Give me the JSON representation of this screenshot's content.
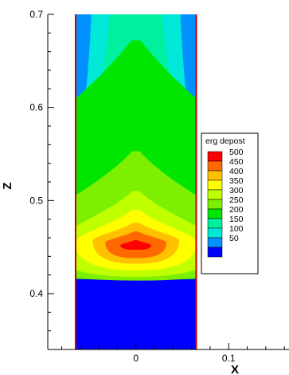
{
  "chart_data": {
    "type": "heatmap",
    "subtype": "filled-contour",
    "title": "",
    "xlabel": "X",
    "ylabel": "Z",
    "xlim": [
      -0.095,
      0.165
    ],
    "ylim": [
      0.34,
      0.7
    ],
    "x_ticks": [
      {
        "value": 0,
        "label": "0"
      },
      {
        "value": 0.1,
        "label": "0.1"
      }
    ],
    "y_ticks": [
      {
        "value": 0.4,
        "label": "0.4"
      },
      {
        "value": 0.5,
        "label": "0.5"
      },
      {
        "value": 0.6,
        "label": "0.6"
      },
      {
        "value": 0.7,
        "label": "0.7"
      }
    ],
    "domain": {
      "x_min": -0.065,
      "x_max": 0.065,
      "z_min": 0.34,
      "z_max": 0.7
    },
    "legend": {
      "title": "erg depost",
      "placement": "right",
      "levels": [
        {
          "value": 500,
          "label": "500",
          "color": "#ff0000"
        },
        {
          "value": 450,
          "label": "450",
          "color": "#ff6a00"
        },
        {
          "value": 400,
          "label": "400",
          "color": "#ffc000"
        },
        {
          "value": 350,
          "label": "350",
          "color": "#ffff00"
        },
        {
          "value": 300,
          "label": "300",
          "color": "#c0ff00"
        },
        {
          "value": 250,
          "label": "250",
          "color": "#7cf000"
        },
        {
          "value": 200,
          "label": "200",
          "color": "#00e600"
        },
        {
          "value": 150,
          "label": "150",
          "color": "#00f0a0"
        },
        {
          "value": 100,
          "label": "100",
          "color": "#00e8d8"
        },
        {
          "value": 50,
          "label": "50",
          "color": "#0090ff"
        },
        {
          "value": 0,
          "label": "",
          "color": "#0000ff"
        }
      ]
    },
    "contours": [
      {
        "level": 50,
        "color": "#0090ff",
        "z_bottom": 0.44,
        "z_top": 0.7,
        "shoulder_z": 0.445,
        "top_half_width": 0.065
      },
      {
        "level": 100,
        "color": "#00e8d8",
        "z_bottom": 0.426,
        "z_top": 0.7,
        "shoulder_z": 0.44,
        "top_half_width": 0.048
      },
      {
        "level": 150,
        "color": "#00f0a0",
        "z_bottom": 0.418,
        "z_top": 0.7,
        "shoulder_z": 0.44,
        "top_half_width": 0.028
      },
      {
        "level": 200,
        "color": "#00e600",
        "z_bottom": 0.415,
        "z_top": 0.672,
        "shoulder_z": 0.445,
        "top_half_width": 0.005
      },
      {
        "level": 250,
        "color": "#7cf000",
        "z_bottom": 0.414,
        "z_top": 0.553,
        "shoulder_z": 0.45,
        "top_half_width": 0.004
      },
      {
        "level": 300,
        "color": "#c0ff00",
        "z_bottom": 0.418,
        "z_top": 0.51,
        "shoulder_z": 0.452,
        "top_half_width": 0.004
      },
      {
        "level": 350,
        "color": "#ffff00",
        "z_bottom": 0.425,
        "z_top": 0.49,
        "shoulder_z": 0.455,
        "top_half_width": 0.004
      },
      {
        "level": 400,
        "color": "#ffc000",
        "z_bottom": 0.432,
        "z_top": 0.476,
        "shoulder_z": 0.457,
        "top_half_width": 0.004
      },
      {
        "level": 450,
        "color": "#ff6a00",
        "z_bottom": 0.438,
        "z_top": 0.467,
        "shoulder_z": 0.455,
        "top_half_width": 0.002
      },
      {
        "level": 500,
        "color": "#ff0000",
        "z_bottom": 0.447,
        "z_top": 0.458,
        "shoulder_z": 0.452,
        "top_half_width": 0.0
      }
    ],
    "peak": {
      "x": 0,
      "z": 0.452,
      "value": 500
    }
  }
}
